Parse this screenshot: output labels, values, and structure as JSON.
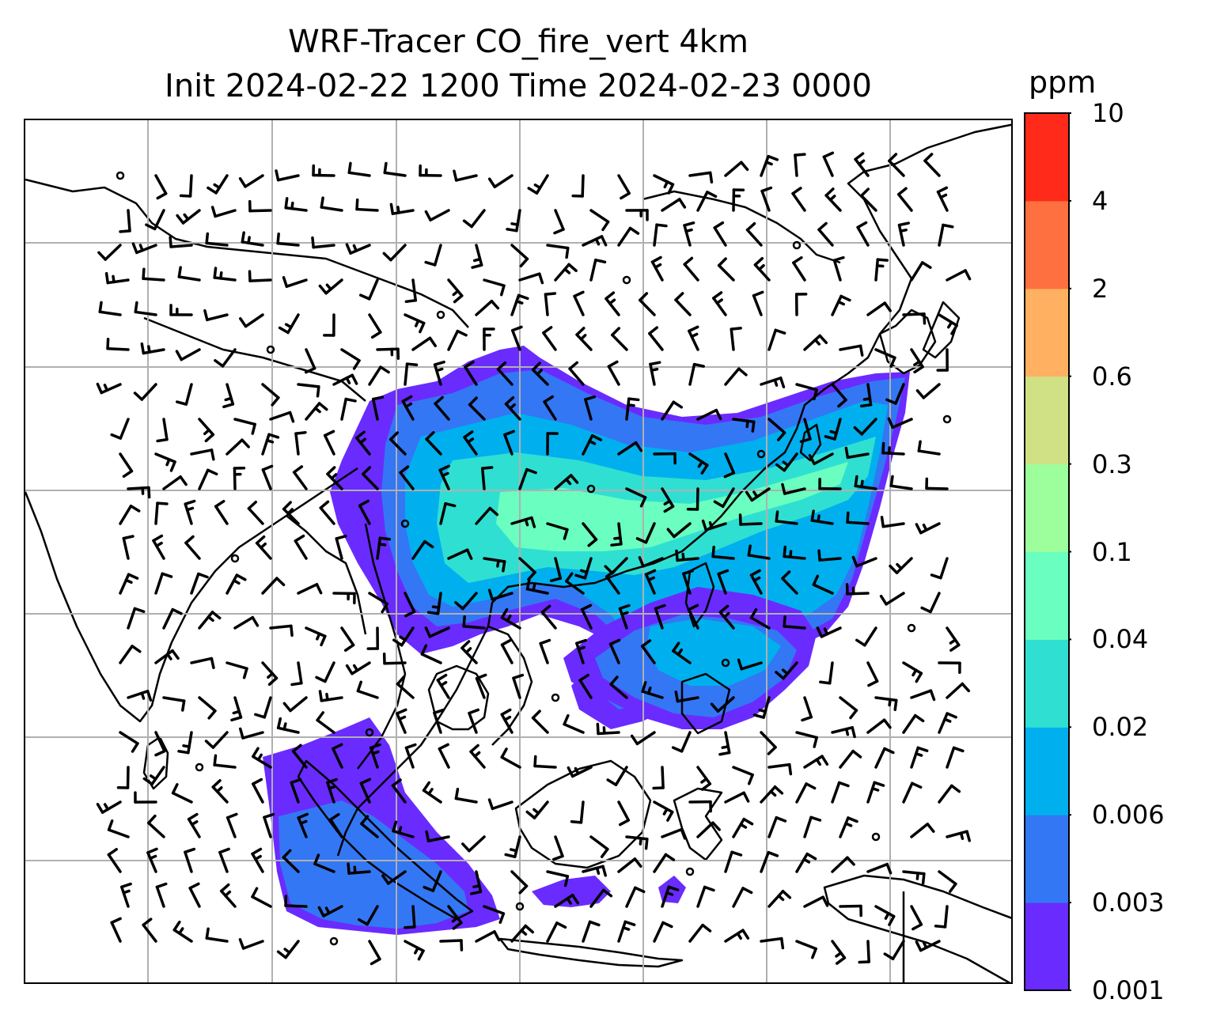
{
  "title": {
    "line1": "WRF-Tracer CO_fire_vert 4km",
    "line2": "Init 2024-02-22 1200 Time 2024-02-23 0000"
  },
  "colorbar": {
    "unit": "ppm",
    "levels": [
      "0.001",
      "0.003",
      "0.006",
      "0.02",
      "0.04",
      "0.1",
      "0.3",
      "0.6",
      "2",
      "4",
      "10"
    ],
    "colors": [
      "#6a2bff",
      "#3377f5",
      "#00b0ee",
      "#2fe0d2",
      "#6affc0",
      "#9dff9b",
      "#d0e085",
      "#ffb060",
      "#ff7040",
      "#ff2a1a"
    ]
  },
  "map": {
    "coastline_color": "#000000",
    "gridline_color": "#b0b0b0",
    "plume_colors": {
      "faint": "#6a2bff",
      "low": "#3377f5",
      "mid": "#00b0ee",
      "high": "#2fe0d2",
      "peak": "#6affc0"
    },
    "wind_barb_color": "#000000"
  }
}
